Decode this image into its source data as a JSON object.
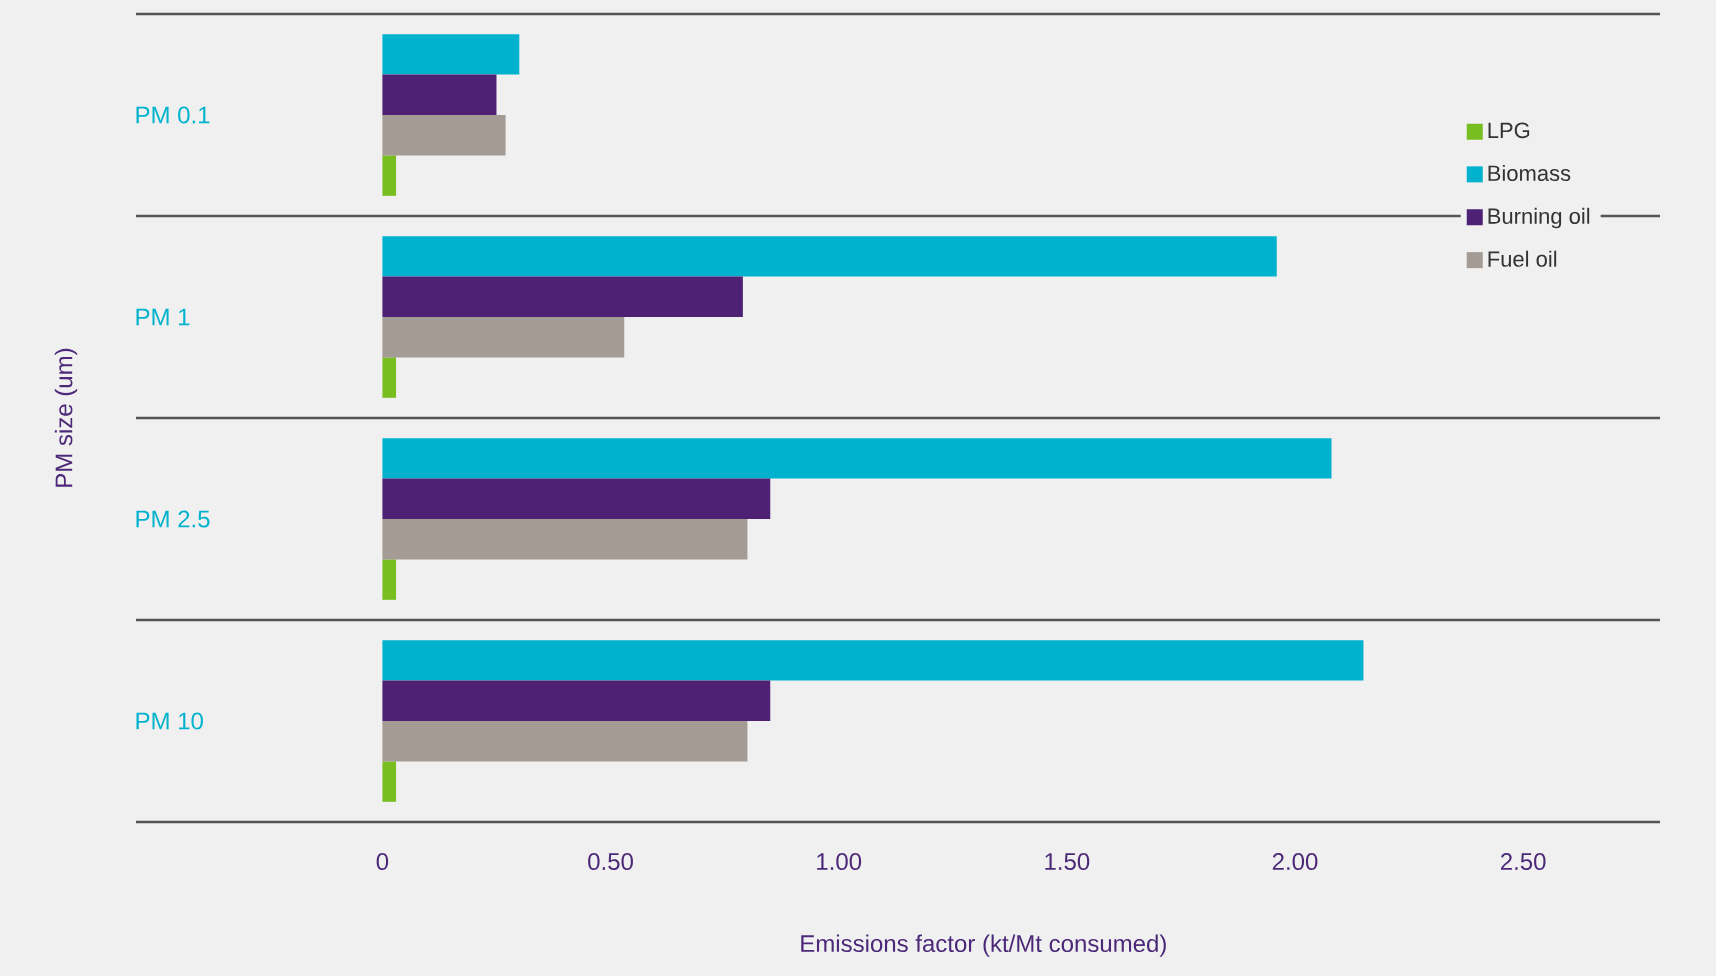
{
  "chart_data": {
    "type": "bar",
    "orientation": "horizontal",
    "xlabel": "Emissions factor (kt/Mt consumed)",
    "ylabel": "PM size (um)",
    "categories": [
      "PM 0.1",
      "PM 1",
      "PM 2.5",
      "PM 10"
    ],
    "series": [
      {
        "name": "LPG",
        "color": "#78be21",
        "values": [
          0.03,
          0.03,
          0.03,
          0.03
        ]
      },
      {
        "name": "Biomass",
        "color": "#00b2cd",
        "values": [
          0.3,
          1.96,
          2.08,
          2.15
        ]
      },
      {
        "name": "Burning oil",
        "color": "#4e2175",
        "values": [
          0.25,
          0.79,
          0.85,
          0.85
        ]
      },
      {
        "name": "Fuel oil",
        "color": "#a39b94",
        "values": [
          0.27,
          0.53,
          0.8,
          0.8
        ]
      }
    ],
    "xlim": [
      -0.54,
      2.8
    ],
    "xticks": [
      0,
      {
        "value": 0.5,
        "label": "0.50"
      },
      {
        "value": 1,
        "label": "1.00"
      },
      {
        "value": 1.5,
        "label": "1.50"
      },
      {
        "value": 2,
        "label": "2.00"
      },
      {
        "value": 2.5,
        "label": "2.50"
      }
    ],
    "grid": "y",
    "legend": "top right"
  }
}
